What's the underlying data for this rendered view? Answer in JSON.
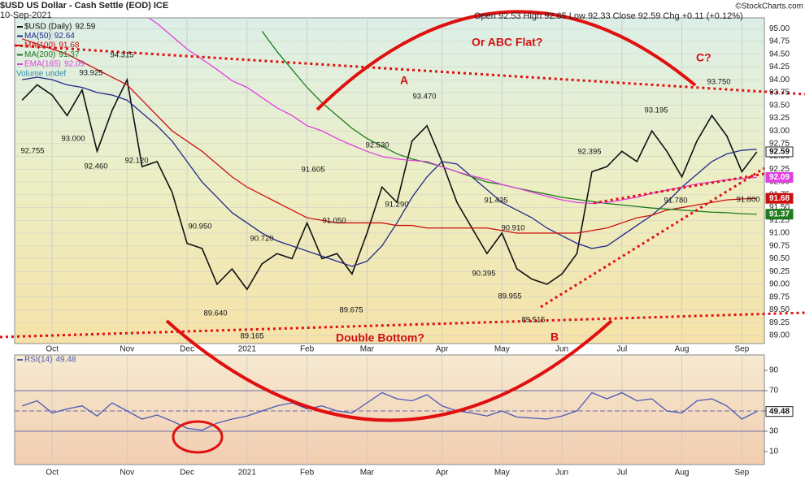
{
  "chart_data": [
    {
      "type": "line",
      "title": "$USD US Dollar - Cash Settle (EOD) ICE",
      "date": "10-Sep-2021",
      "credit": "©StockCharts.com",
      "quote": "Open 92.53 High 92.65 Low 92.33 Close 92.59 Chg +0.11 (+0.12%)",
      "volume_note": "Volume undef",
      "annotations": [
        "Or ABC Flat?",
        "A",
        "C?",
        "Double Bottom?",
        "B"
      ],
      "price_labels": [
        "92.755",
        "93.000",
        "92.460",
        "94.315",
        "93.925",
        "92.120",
        "90.950",
        "89.640",
        "90.720",
        "89.165",
        "91.605",
        "91.050",
        "89.675",
        "92.530",
        "91.290",
        "93.470",
        "91.435",
        "90.910",
        "90.395",
        "89.955",
        "89.515",
        "92.395",
        "93.195",
        "91.780",
        "93.750",
        "91.800"
      ],
      "categories": [
        null,
        null,
        "Oct",
        null,
        null,
        null,
        null,
        "Nov",
        null,
        null,
        null,
        "Dec",
        null,
        null,
        null,
        "2021",
        null,
        null,
        null,
        "Feb",
        null,
        null,
        null,
        "Mar",
        null,
        null,
        null,
        null,
        "Apr",
        null,
        null,
        null,
        "May",
        null,
        null,
        null,
        "Jun",
        null,
        null,
        null,
        "Jul",
        null,
        null,
        null,
        "Aug",
        null,
        null,
        null,
        "Sep",
        null
      ],
      "ylim": [
        88.84,
        95.21
      ],
      "yticks": [
        {
          "value": 89,
          "label": "89.00"
        },
        {
          "value": 89.25,
          "label": "89.25"
        },
        {
          "value": 89.5,
          "label": "89.50"
        },
        {
          "value": 89.75,
          "label": "89.75"
        },
        {
          "value": 90,
          "label": "90.00"
        },
        {
          "value": 90.25,
          "label": "90.25"
        },
        {
          "value": 90.5,
          "label": "90.50"
        },
        {
          "value": 90.75,
          "label": "90.75"
        },
        {
          "value": 91,
          "label": "91.00"
        },
        {
          "value": 91.25,
          "label": "91.25"
        },
        {
          "value": 91.5,
          "label": "91.50"
        },
        {
          "value": 91.75,
          "label": "91.75"
        },
        {
          "value": 92,
          "label": "92.00"
        },
        {
          "value": 92.25,
          "label": "92.25"
        },
        {
          "value": 92.5,
          "label": "92.50"
        },
        {
          "value": 92.75,
          "label": "92.75"
        },
        {
          "value": 93,
          "label": "93.00"
        },
        {
          "value": 93.25,
          "label": "93.25"
        },
        {
          "value": 93.5,
          "label": "93.50"
        },
        {
          "value": 93.75,
          "label": "93.75"
        },
        {
          "value": 94,
          "label": "94.00"
        },
        {
          "value": 94.25,
          "label": "94.25"
        },
        {
          "value": 94.5,
          "label": "94.50"
        },
        {
          "value": 94.75,
          "label": "94.75"
        },
        {
          "value": 95,
          "label": "95.00"
        }
      ],
      "grid": true,
      "series": [
        {
          "name": "$USD (Daily)",
          "color": "#111111",
          "values": [
            93.6,
            93.9,
            93.7,
            93.3,
            93.8,
            92.6,
            93.4,
            94.0,
            92.3,
            92.4,
            91.8,
            90.8,
            90.7,
            90.0,
            90.3,
            89.9,
            90.4,
            90.6,
            90.5,
            91.2,
            90.5,
            90.6,
            90.2,
            91.0,
            91.9,
            91.6,
            92.8,
            93.1,
            92.4,
            91.6,
            91.1,
            90.6,
            91.0,
            90.3,
            90.1,
            90.0,
            90.2,
            90.6,
            92.2,
            92.3,
            92.6,
            92.4,
            93.0,
            92.6,
            92.1,
            92.8,
            93.3,
            92.9,
            92.2,
            92.59
          ]
        },
        {
          "name": "MA(50)",
          "color": "#1f2a8a",
          "values": [
            94.0,
            94.05,
            94.0,
            93.9,
            93.85,
            93.75,
            93.7,
            93.6,
            93.35,
            93.1,
            92.8,
            92.4,
            92.0,
            91.7,
            91.4,
            91.2,
            91.0,
            90.85,
            90.75,
            90.65,
            90.55,
            90.45,
            90.35,
            90.45,
            90.75,
            91.2,
            91.7,
            92.1,
            92.4,
            92.35,
            92.1,
            91.85,
            91.6,
            91.45,
            91.3,
            91.1,
            90.95,
            90.8,
            90.7,
            90.75,
            90.95,
            91.15,
            91.35,
            91.6,
            91.9,
            92.15,
            92.4,
            92.55,
            92.62,
            92.64
          ]
        },
        {
          "name": "MA(100)",
          "color": "#cc1010",
          "values": [
            94.8,
            94.7,
            94.6,
            94.5,
            94.35,
            94.2,
            94.05,
            93.9,
            93.6,
            93.3,
            93.0,
            92.8,
            92.6,
            92.35,
            92.1,
            91.9,
            91.75,
            91.6,
            91.45,
            91.3,
            91.25,
            91.2,
            91.2,
            91.2,
            91.2,
            91.15,
            91.15,
            91.1,
            91.1,
            91.1,
            91.1,
            91.1,
            91.05,
            91.0,
            91.0,
            91.0,
            91.0,
            91.0,
            91.05,
            91.1,
            91.2,
            91.3,
            91.35,
            91.45,
            91.5,
            91.55,
            91.6,
            91.65,
            91.67,
            91.68
          ]
        },
        {
          "name": "MA(200)",
          "color": "#1e7b1e",
          "values": [
            null,
            null,
            null,
            null,
            null,
            null,
            null,
            null,
            null,
            null,
            null,
            null,
            null,
            null,
            null,
            null,
            94.95,
            94.55,
            94.2,
            93.85,
            93.55,
            93.3,
            93.05,
            92.85,
            92.7,
            92.55,
            92.45,
            92.38,
            92.3,
            92.2,
            92.1,
            92.0,
            91.95,
            91.88,
            91.82,
            91.76,
            91.7,
            91.66,
            91.62,
            91.58,
            91.55,
            91.52,
            91.49,
            91.47,
            91.45,
            91.43,
            91.41,
            91.4,
            91.38,
            91.37
          ]
        },
        {
          "name": "EMA(165)",
          "color": "#e040e0",
          "values": [
            null,
            null,
            null,
            null,
            null,
            null,
            null,
            null,
            95.3,
            95.1,
            94.85,
            94.6,
            94.4,
            94.2,
            93.98,
            93.85,
            93.65,
            93.45,
            93.3,
            93.1,
            93.0,
            92.85,
            92.72,
            92.6,
            92.5,
            92.45,
            92.42,
            92.4,
            92.3,
            92.2,
            92.12,
            92.05,
            91.95,
            91.88,
            91.8,
            91.72,
            91.65,
            91.6,
            91.58,
            91.6,
            91.65,
            91.7,
            91.78,
            91.84,
            91.9,
            91.96,
            92.0,
            92.04,
            92.07,
            92.09
          ]
        }
      ]
    },
    {
      "type": "line",
      "categories": [
        null,
        null,
        "Oct",
        null,
        null,
        null,
        null,
        "Nov",
        null,
        null,
        null,
        "Dec",
        null,
        null,
        null,
        "2021",
        null,
        null,
        null,
        "Feb",
        null,
        null,
        null,
        "Mar",
        null,
        null,
        null,
        null,
        "Apr",
        null,
        null,
        null,
        "May",
        null,
        null,
        null,
        "Jun",
        null,
        null,
        null,
        "Jul",
        null,
        null,
        null,
        "Aug",
        null,
        null,
        null,
        "Sep",
        null
      ],
      "ylim": [
        -2.8,
        105.2
      ],
      "yticks": [
        10,
        30,
        50,
        70,
        90
      ],
      "hlines": [
        30,
        50,
        70
      ],
      "series": [
        {
          "name": "RSI(14)",
          "color": "#4a58b8",
          "values": [
            55,
            60,
            48,
            52,
            55,
            45,
            58,
            50,
            42,
            46,
            40,
            33,
            31,
            38,
            42,
            45,
            50,
            55,
            58,
            52,
            55,
            50,
            48,
            58,
            68,
            62,
            60,
            66,
            55,
            50,
            48,
            45,
            50,
            44,
            43,
            42,
            45,
            50,
            68,
            62,
            68,
            60,
            62,
            50,
            48,
            60,
            62,
            55,
            42,
            49.48
          ]
        }
      ]
    }
  ]
}
